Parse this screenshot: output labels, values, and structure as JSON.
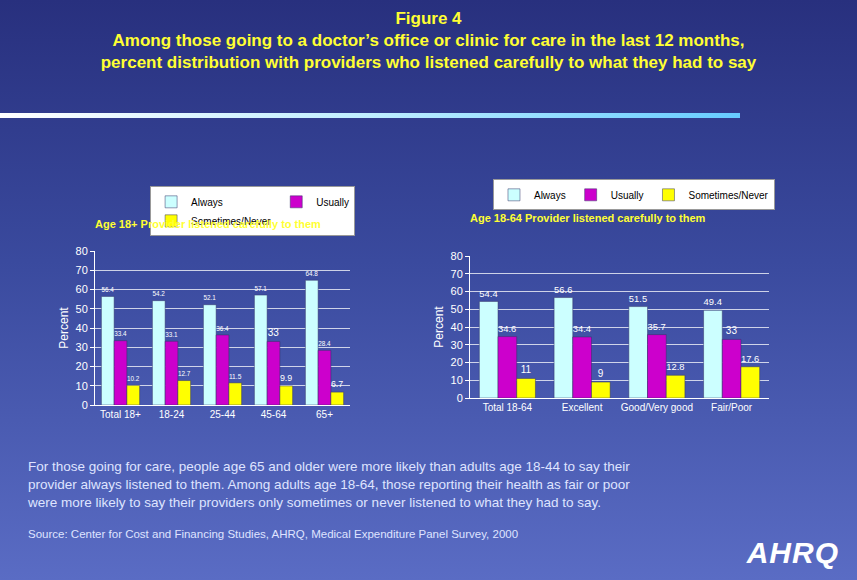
{
  "figure": {
    "title": [
      "Figure 4",
      "Among those going to a doctor’s office or clinic for care in the last 12 months,",
      "percent distribution with providers who listened carefully to what they had to say"
    ],
    "caption": [
      "For those going for care, people age 65 and older were more likely than adults age 18-44 to say their",
      "provider always listened to them. Among adults age 18-64, those reporting their health as fair or poor",
      "were more likely to say their providers only sometimes or never listened to what they had to say."
    ],
    "source": "Source: Center for Cost and Financing Studies, AHRQ, Medical Expenditure Panel Survey, 2000",
    "logo": "AHRQ"
  },
  "chart_data": [
    {
      "type": "bar",
      "title": "Age 18+ Provider listened carefully to them",
      "y_label": "Percent",
      "categories": [
        "Total 18+",
        "18-24",
        "25-44",
        "45-64",
        "65+"
      ],
      "series": [
        {
          "name": "Always",
          "color": "#ccffff",
          "values": [
            56.4,
            54.2,
            52.1,
            57.1,
            64.8
          ]
        },
        {
          "name": "Usually",
          "color": "#cc00cc",
          "values": [
            33.4,
            33.1,
            36.4,
            33,
            28.4
          ]
        },
        {
          "name": "Sometimes/Never",
          "color": "#ffff00",
          "values": [
            10.2,
            12.7,
            11.5,
            9.9,
            6.7
          ]
        }
      ],
      "ylim": [
        0,
        80
      ],
      "yticks": [
        0,
        10,
        20,
        30,
        40,
        50,
        60,
        70,
        80
      ],
      "grid": true,
      "legend": "top",
      "data_labels": true
    },
    {
      "type": "bar",
      "title": "Age 18-64 Provider listened carefully to them",
      "y_label": "Percent",
      "categories": [
        "Total 18-64",
        "Excellent",
        "Good/Very good",
        "Fair/Poor"
      ],
      "series": [
        {
          "name": "Always",
          "color": "#ccffff",
          "values": [
            54.4,
            56.6,
            51.5,
            49.4
          ]
        },
        {
          "name": "Usually",
          "color": "#cc00cc",
          "values": [
            34.6,
            34.4,
            35.7,
            33
          ]
        },
        {
          "name": "Sometimes/Never",
          "color": "#ffff00",
          "values": [
            11,
            9,
            12.8,
            17.6
          ]
        }
      ],
      "ylim": [
        0,
        80
      ],
      "yticks": [
        0,
        10,
        20,
        30,
        40,
        50,
        60,
        70,
        80
      ],
      "grid": true,
      "legend": "top",
      "data_labels": true
    }
  ]
}
